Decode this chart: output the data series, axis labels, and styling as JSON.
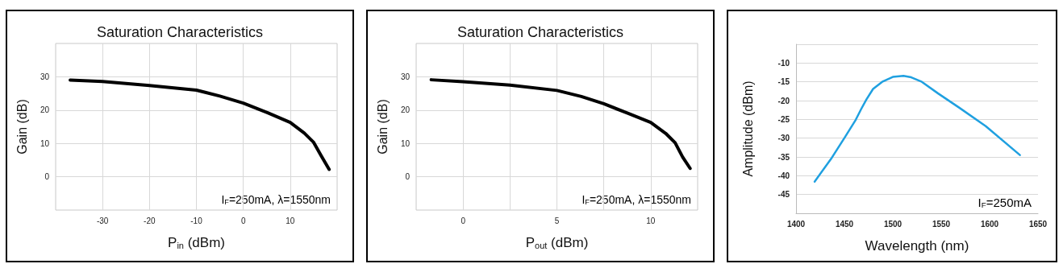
{
  "chart_data": [
    {
      "type": "line",
      "title": "Saturation Characteristics",
      "xlabel": "P$_{in}$ (dBm)",
      "ylabel": "Gain (dB)",
      "annotations": [
        "I$_{F}$=250mA, λ=1550nm"
      ],
      "xlim": [
        -40,
        20
      ],
      "xticks": [
        -30,
        -20,
        -10,
        0,
        10
      ],
      "ylim": [
        -10,
        40
      ],
      "yticks": [
        0,
        10,
        20,
        30
      ],
      "grid": true,
      "marker": "none",
      "line_style": "solid",
      "series": [
        {
          "color": "#000000",
          "x": [
            -36.9,
            -30,
            -20,
            -10,
            -5,
            0,
            5.2,
            10,
            13,
            15,
            16.6,
            18.3
          ],
          "values": [
            29.0,
            28.6,
            27.4,
            26.0,
            24.2,
            22.1,
            19.2,
            16.3,
            13.1,
            10.3,
            6.3,
            2.2
          ]
        }
      ]
    },
    {
      "type": "line",
      "title": "Saturation Characteristics",
      "xlabel": "P$_{out}$ (dBm)",
      "ylabel": "Gain (dB)",
      "annotations": [
        "I$_{F}$=250mA, λ=1550nm"
      ],
      "xlim": [
        -2.5,
        12.5
      ],
      "xticks": [
        {
          "value": 0,
          "label": "0"
        },
        {
          "value": 2.5,
          "label": null
        },
        {
          "value": 5,
          "label": "5"
        },
        {
          "value": 7.5,
          "label": null
        },
        {
          "value": 10,
          "label": "10"
        }
      ],
      "ylim": [
        -10,
        40
      ],
      "yticks": [
        0,
        10,
        20,
        30
      ],
      "grid": true,
      "marker": "none",
      "line_style": "solid",
      "series": [
        {
          "color": "#000000",
          "x": [
            -1.7,
            0,
            2.5,
            5,
            6.3,
            7.5,
            8.8,
            10,
            10.8,
            11.3,
            11.7,
            12.1
          ],
          "values": [
            29.1,
            28.5,
            27.5,
            25.9,
            24.1,
            21.9,
            19.0,
            16.3,
            13.0,
            10.2,
            5.9,
            2.5
          ]
        }
      ]
    },
    {
      "type": "line",
      "xlabel": "Wavelength (nm)",
      "ylabel": "Amplitude (dBm)",
      "annotations": [
        "I$_{F}$=250mA"
      ],
      "xlim": [
        1400,
        1650
      ],
      "xticks": [
        1400,
        1450,
        1500,
        1550,
        1600,
        1650
      ],
      "ylim": [
        -50,
        -5
      ],
      "yticks": [
        -45,
        -40,
        -35,
        -30,
        -25,
        -20,
        -15,
        -10,
        {
          "value": -5,
          "label": null
        }
      ],
      "grid": "y",
      "marker": "none",
      "line_style": "solid",
      "series": [
        {
          "color": "#1fa0e0",
          "x": [
            1419.2,
            1437,
            1450.8,
            1461.7,
            1467.2,
            1472.7,
            1479.6,
            1489,
            1500,
            1511,
            1519,
            1530,
            1546.8,
            1568.7,
            1596,
            1631.3
          ],
          "values": [
            -41.6,
            -35.2,
            -29.6,
            -25.1,
            -22.3,
            -19.7,
            -16.9,
            -15.0,
            -13.7,
            -13.4,
            -13.8,
            -15.0,
            -18.1,
            -21.9,
            -26.8,
            -34.5
          ]
        }
      ]
    }
  ]
}
